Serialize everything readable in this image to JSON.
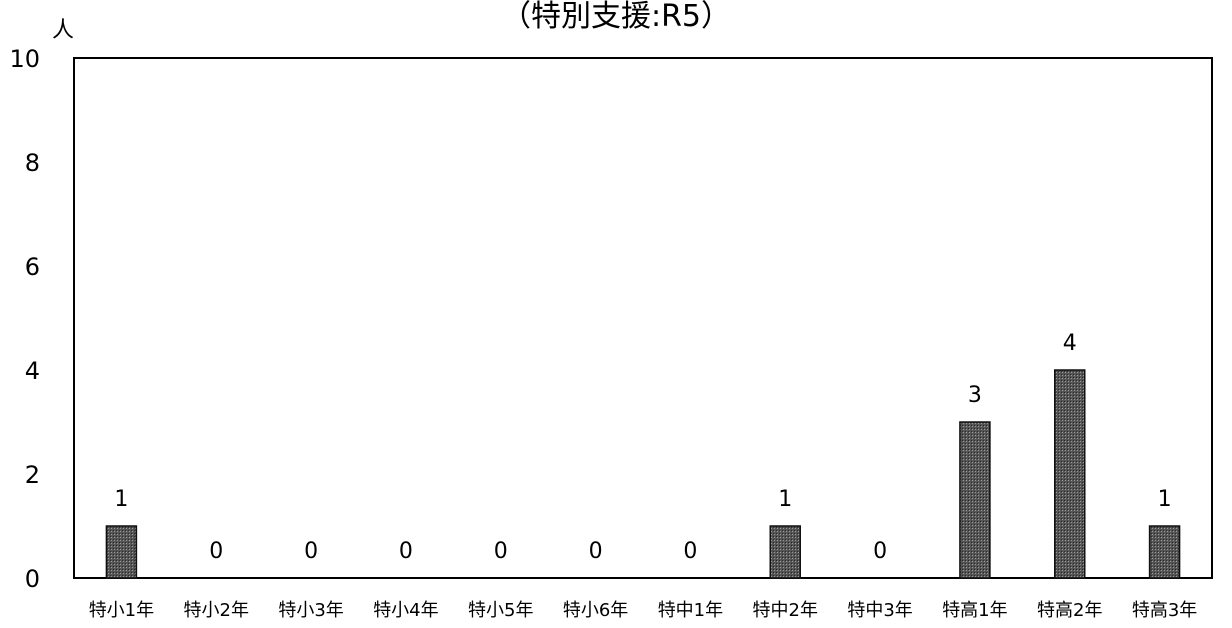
{
  "chart_data": {
    "type": "bar",
    "title": "（特別支援:R5）",
    "ylabel": "人",
    "xlabel": "",
    "categories": [
      "特小1年",
      "特小2年",
      "特小3年",
      "特小4年",
      "特小5年",
      "特小6年",
      "特中1年",
      "特中2年",
      "特中3年",
      "特高1年",
      "特高2年",
      "特高3年"
    ],
    "values": [
      1,
      0,
      0,
      0,
      0,
      0,
      0,
      1,
      0,
      3,
      4,
      1
    ],
    "data_labels": [
      "1",
      "0",
      "0",
      "0",
      "0",
      "0",
      "0",
      "1",
      "0",
      "3",
      "4",
      "1"
    ],
    "yticks": [
      "0",
      "2",
      "4",
      "6",
      "8",
      "10"
    ],
    "ylim": [
      0,
      10
    ],
    "grid": false,
    "legend": "none",
    "bar_color": "#444444"
  }
}
